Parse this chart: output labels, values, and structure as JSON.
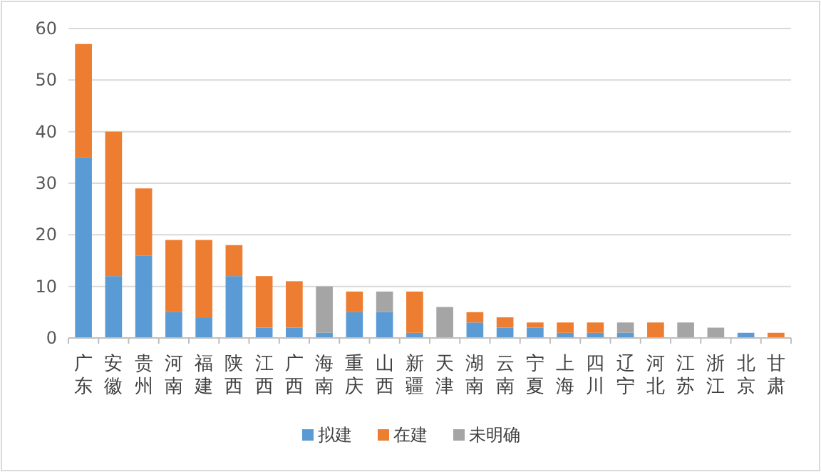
{
  "chart_data": {
    "type": "bar",
    "stacked": true,
    "categories": [
      "广东",
      "安徽",
      "贵州",
      "河南",
      "福建",
      "陕西",
      "江西",
      "广西",
      "海南",
      "重庆",
      "山西",
      "新疆",
      "天津",
      "湖南",
      "云南",
      "宁夏",
      "上海",
      "四川",
      "辽宁",
      "河北",
      "江苏",
      "浙江",
      "北京",
      "甘肃"
    ],
    "series": [
      {
        "name": "拟建",
        "color": "#5b9bd5",
        "values": [
          35,
          12,
          16,
          5,
          4,
          12,
          2,
          2,
          1,
          5,
          5,
          1,
          0,
          3,
          2,
          2,
          1,
          1,
          1,
          0,
          0,
          0,
          1,
          0
        ]
      },
      {
        "name": "在建",
        "color": "#ed7d31",
        "values": [
          22,
          28,
          13,
          14,
          15,
          6,
          10,
          9,
          0,
          4,
          0,
          8,
          0,
          2,
          2,
          1,
          2,
          2,
          0,
          3,
          0,
          0,
          0,
          1
        ]
      },
      {
        "name": "未明确",
        "color": "#a5a5a5",
        "values": [
          0,
          0,
          0,
          0,
          0,
          0,
          0,
          0,
          9,
          0,
          4,
          0,
          6,
          0,
          0,
          0,
          0,
          0,
          2,
          0,
          3,
          2,
          0,
          0
        ]
      }
    ],
    "ylim": [
      0,
      60
    ],
    "yticks": [
      0,
      10,
      20,
      30,
      40,
      50,
      60
    ],
    "grid": "y",
    "legend": "bottom"
  }
}
